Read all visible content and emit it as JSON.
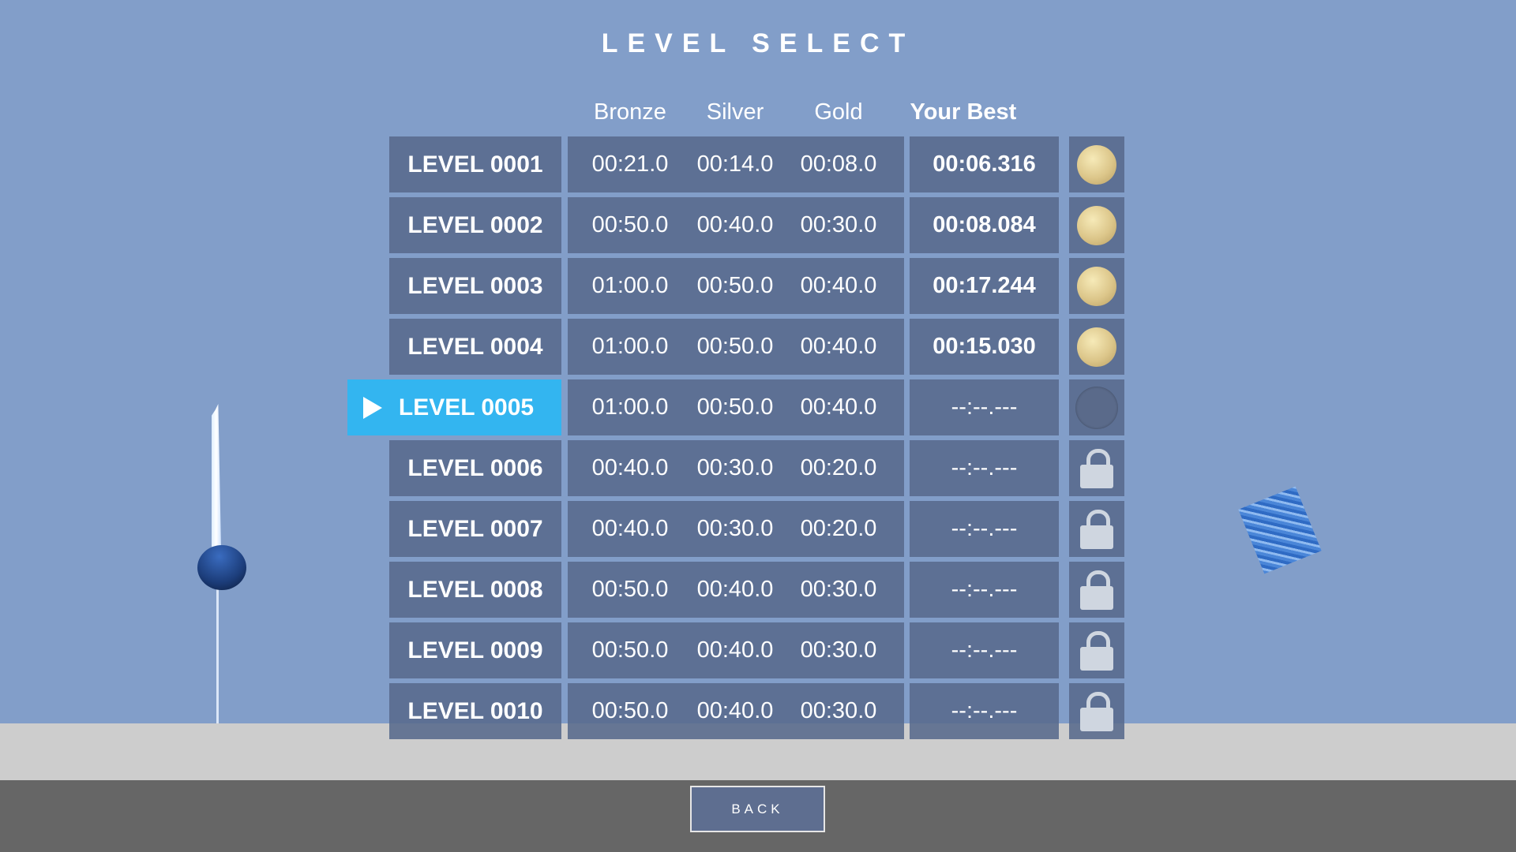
{
  "title": "LEVEL SELECT",
  "headers": {
    "bronze": "Bronze",
    "silver": "Silver",
    "gold": "Gold",
    "best": "Your Best"
  },
  "levels": [
    {
      "name": "LEVEL 0001",
      "bronze": "00:21.0",
      "silver": "00:14.0",
      "gold": "00:08.0",
      "best": "00:06.316",
      "status": "gold-medal"
    },
    {
      "name": "LEVEL 0002",
      "bronze": "00:50.0",
      "silver": "00:40.0",
      "gold": "00:30.0",
      "best": "00:08.084",
      "status": "gold-medal"
    },
    {
      "name": "LEVEL 0003",
      "bronze": "01:00.0",
      "silver": "00:50.0",
      "gold": "00:40.0",
      "best": "00:17.244",
      "status": "gold-medal"
    },
    {
      "name": "LEVEL 0004",
      "bronze": "01:00.0",
      "silver": "00:50.0",
      "gold": "00:40.0",
      "best": "00:15.030",
      "status": "gold-medal"
    },
    {
      "name": "LEVEL 0005",
      "bronze": "01:00.0",
      "silver": "00:50.0",
      "gold": "00:40.0",
      "best": "--:--.---",
      "status": "empty",
      "selected": true
    },
    {
      "name": "LEVEL 0006",
      "bronze": "00:40.0",
      "silver": "00:30.0",
      "gold": "00:20.0",
      "best": "--:--.---",
      "status": "locked"
    },
    {
      "name": "LEVEL 0007",
      "bronze": "00:40.0",
      "silver": "00:30.0",
      "gold": "00:20.0",
      "best": "--:--.---",
      "status": "locked"
    },
    {
      "name": "LEVEL 0008",
      "bronze": "00:50.0",
      "silver": "00:40.0",
      "gold": "00:30.0",
      "best": "--:--.---",
      "status": "locked"
    },
    {
      "name": "LEVEL 0009",
      "bronze": "00:50.0",
      "silver": "00:40.0",
      "gold": "00:30.0",
      "best": "--:--.---",
      "status": "locked"
    },
    {
      "name": "LEVEL 0010",
      "bronze": "00:50.0",
      "silver": "00:40.0",
      "gold": "00:30.0",
      "best": "--:--.---",
      "status": "locked"
    }
  ],
  "back_label": "BACK",
  "colors": {
    "background": "#829ec9",
    "cell": "#586a8c",
    "selected": "#33b5f0",
    "medal": "#dcc68a"
  }
}
